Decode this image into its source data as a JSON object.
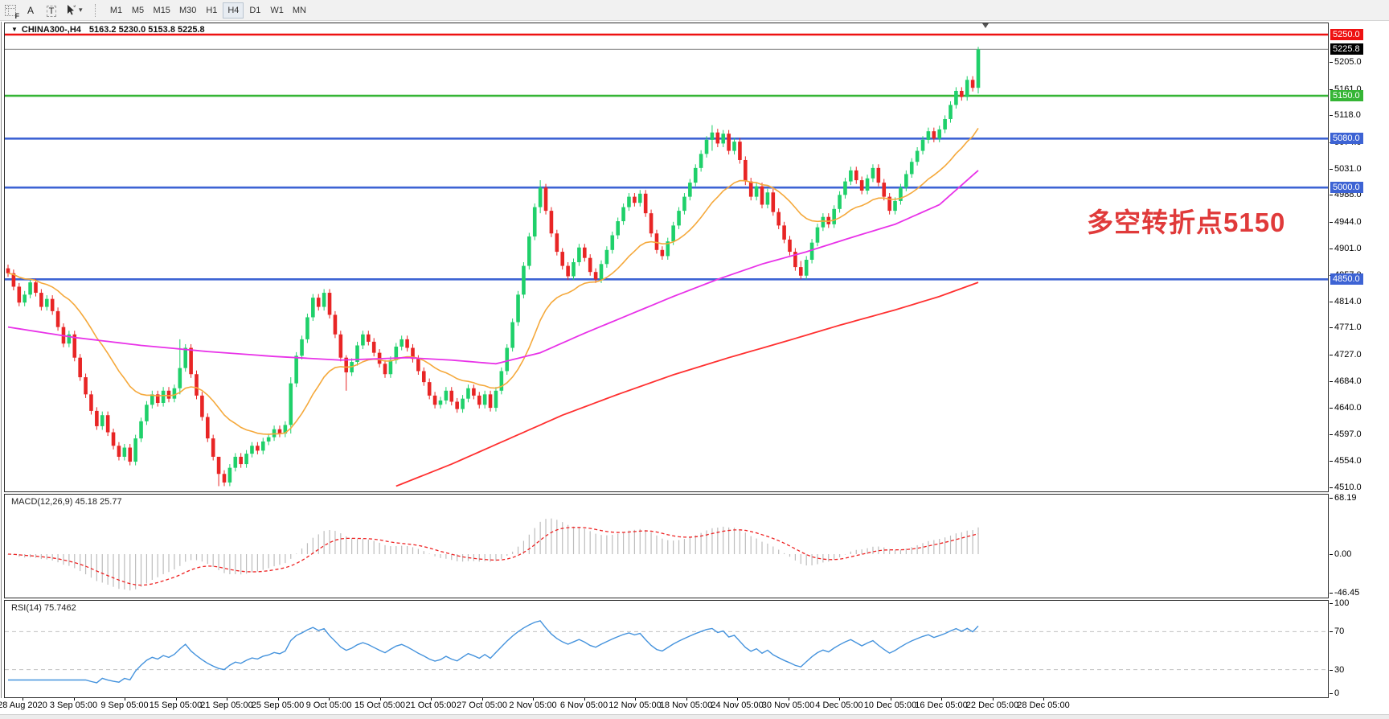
{
  "toolbar": {
    "tool_f": "F",
    "tool_a": "A",
    "tool_t": "T",
    "timeframes": [
      {
        "label": "M1",
        "active": false
      },
      {
        "label": "M5",
        "active": false
      },
      {
        "label": "M15",
        "active": false
      },
      {
        "label": "M30",
        "active": false
      },
      {
        "label": "H1",
        "active": false
      },
      {
        "label": "H4",
        "active": true
      },
      {
        "label": "D1",
        "active": false
      },
      {
        "label": "W1",
        "active": false
      },
      {
        "label": "MN",
        "active": false
      }
    ]
  },
  "symbol_bar": {
    "name": "CHINA300-,H4",
    "ohlc": "5163.2 5230.0 5153.8 5225.8"
  },
  "annotation": {
    "text": "多空转折点5150",
    "color": "#e03a3a"
  },
  "chart_data": {
    "type": "candlestick",
    "symbol": "CHINA300-",
    "timeframe": "H4",
    "title": "CHINA300-,H4 5163.2 5230.0 5153.8 5225.8",
    "ylim": [
      4510,
      5250
    ],
    "grid": false,
    "x_labels": [
      "28 Aug 2020",
      "3 Sep 05:00",
      "9 Sep 05:00",
      "15 Sep 05:00",
      "21 Sep 05:00",
      "25 Sep 05:00",
      "9 Oct 05:00",
      "15 Oct 05:00",
      "21 Oct 05:00",
      "27 Oct 05:00",
      "2 Nov 05:00",
      "6 Nov 05:00",
      "12 Nov 05:00",
      "18 Nov 05:00",
      "24 Nov 05:00",
      "30 Nov 05:00",
      "4 Dec 05:00",
      "10 Dec 05:00",
      "16 Dec 05:00",
      "22 Dec 05:00",
      "28 Dec 05:00"
    ],
    "price_axis_ticks": [
      5205,
      5161,
      5118,
      5074,
      5031,
      4988,
      4944,
      4901,
      4857,
      4814,
      4771,
      4727,
      4684,
      4640,
      4597,
      4554,
      4510
    ],
    "hlines": [
      {
        "price": 5250,
        "label": "5250.0",
        "color": "#ee1111"
      },
      {
        "price": 5150,
        "label": "5150.0",
        "color": "#35b535"
      },
      {
        "price": 5080,
        "label": "5080.0",
        "color": "#3d63d4"
      },
      {
        "price": 5000,
        "label": "5000.0",
        "color": "#3d63d4"
      },
      {
        "price": 4850,
        "label": "4850.0",
        "color": "#3d63d4"
      }
    ],
    "current_price": {
      "price": 5225.8,
      "label": "5225.8",
      "line_color": "#9b9b9b",
      "badge_color": "#000000"
    },
    "candle_up_color": "#1fd06a",
    "candle_down_color": "#e82525",
    "candles": {
      "first_open": 4868,
      "default_wick": 6,
      "closes": [
        4860,
        4838,
        4812,
        4825,
        4845,
        4828,
        4805,
        4818,
        4798,
        4772,
        4745,
        4760,
        4722,
        4690,
        4662,
        4635,
        4610,
        4628,
        4600,
        4578,
        4560,
        4575,
        4552,
        4590,
        4618,
        4645,
        4662,
        4648,
        4668,
        4655,
        4672,
        4705,
        4738,
        4695,
        4660,
        4625,
        4590,
        4560,
        4532,
        4518,
        4542,
        4560,
        4548,
        4565,
        4578,
        4570,
        4585,
        4592,
        4605,
        4598,
        4612,
        4680,
        4725,
        4752,
        4788,
        4820,
        4805,
        4828,
        4792,
        4760,
        4722,
        4698,
        4715,
        4742,
        4760,
        4748,
        4730,
        4712,
        4695,
        4718,
        4740,
        4752,
        4738,
        4720,
        4700,
        4682,
        4660,
        4645,
        4652,
        4668,
        4650,
        4638,
        4655,
        4672,
        4660,
        4645,
        4662,
        4640,
        4668,
        4700,
        4738,
        4780,
        4825,
        4872,
        4920,
        4968,
        5000,
        4962,
        4925,
        4895,
        4872,
        4855,
        4878,
        4902,
        4885,
        4862,
        4850,
        4875,
        4898,
        4922,
        4945,
        4968,
        4985,
        4975,
        4990,
        4958,
        4925,
        4898,
        4888,
        4912,
        4938,
        4962,
        4985,
        5008,
        5032,
        5055,
        5078,
        5090,
        5072,
        5088,
        5060,
        5075,
        5045,
        5010,
        4985,
        5002,
        4972,
        4992,
        4960,
        4938,
        4915,
        4895,
        4870,
        4856,
        4882,
        4910,
        4935,
        4952,
        4940,
        4965,
        4988,
        5010,
        5028,
        5012,
        4995,
        5015,
        5032,
        5008,
        4985,
        4962,
        4978,
        5000,
        5022,
        5042,
        5060,
        5078,
        5092,
        5080,
        5095,
        5112,
        5135,
        5158,
        5148,
        5176,
        5163,
        5225.8
      ],
      "wick_overrides": {
        "31": [
          4752,
          4662
        ],
        "38": [
          4555,
          4512
        ],
        "51": [
          4690,
          4598
        ],
        "61": [
          4726,
          4668
        ],
        "96": [
          5012,
          4958
        ],
        "127": [
          5102,
          5060
        ],
        "143": [
          4880,
          4850
        ],
        "175": [
          5230,
          5153.8
        ]
      }
    },
    "moving_averages": {
      "fast": {
        "name": "fast-ma",
        "color": "#f5a93c",
        "type": "ema",
        "period": 20
      },
      "medium": {
        "name": "medium-ma",
        "color": "#e832e8",
        "anchors": [
          [
            0,
            4772
          ],
          [
            12,
            4755
          ],
          [
            24,
            4742
          ],
          [
            36,
            4732
          ],
          [
            48,
            4724
          ],
          [
            60,
            4718
          ],
          [
            72,
            4722
          ],
          [
            80,
            4718
          ],
          [
            88,
            4712
          ],
          [
            96,
            4730
          ],
          [
            104,
            4762
          ],
          [
            112,
            4792
          ],
          [
            120,
            4822
          ],
          [
            128,
            4850
          ],
          [
            136,
            4875
          ],
          [
            144,
            4895
          ],
          [
            152,
            4918
          ],
          [
            160,
            4940
          ],
          [
            168,
            4972
          ],
          [
            175,
            5028
          ]
        ]
      },
      "slow": {
        "name": "slow-ma",
        "color": "#ff3030",
        "anchors": [
          [
            70,
            4512
          ],
          [
            80,
            4548
          ],
          [
            90,
            4588
          ],
          [
            100,
            4628
          ],
          [
            110,
            4662
          ],
          [
            120,
            4694
          ],
          [
            130,
            4722
          ],
          [
            140,
            4748
          ],
          [
            150,
            4775
          ],
          [
            160,
            4800
          ],
          [
            168,
            4822
          ],
          [
            175,
            4845
          ]
        ]
      }
    },
    "macd": {
      "label": "MACD(12,26,9)",
      "values": "45.18 25.77",
      "axis_ticks": [
        "68.19",
        "0.00",
        "-46.45"
      ],
      "axis_values": [
        68.19,
        0,
        -46.45
      ],
      "histogram_color": "#bdbdbd",
      "signal_color": "#ee2222"
    },
    "rsi": {
      "label": "RSI(14)",
      "value": "75.7462",
      "axis_ticks": [
        "100",
        "70",
        "30",
        "0"
      ],
      "axis_values": [
        100,
        70,
        30,
        0
      ],
      "levels": [
        70,
        30
      ],
      "line_color": "#4593dd",
      "level_color": "#c0c0c0"
    }
  }
}
